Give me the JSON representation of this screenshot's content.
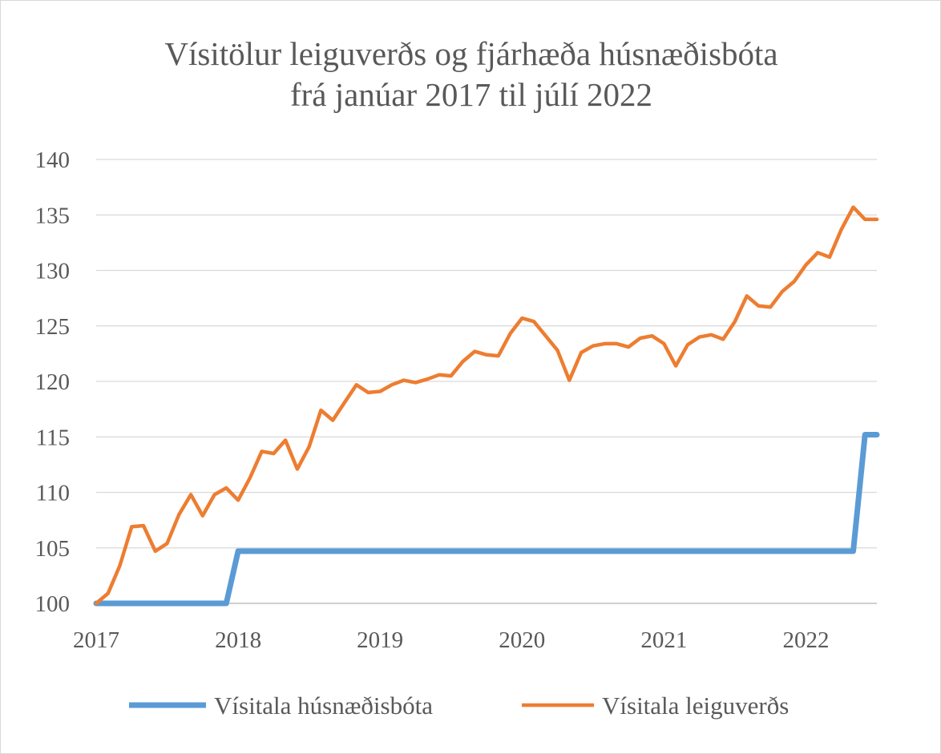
{
  "chart_data": {
    "type": "line",
    "title": [
      "Vísitölur leiguverðs og fjárhæða húsnæðisbóta",
      "frá janúar 2017 til júlí 2022"
    ],
    "xlabel": "",
    "ylabel": "",
    "ylim": [
      100,
      140
    ],
    "yticks": [
      100,
      105,
      110,
      115,
      120,
      125,
      130,
      135,
      140
    ],
    "xticks": [
      "2017",
      "2018",
      "2019",
      "2020",
      "2021",
      "2022"
    ],
    "x_start": "2017-01",
    "x_end": "2022-07",
    "grid": "horizontal",
    "legend_position": "bottom",
    "series": [
      {
        "name": "Vísitala húsnæðisbóta",
        "color": "#5B9BD5",
        "values": [
          100,
          100,
          100,
          100,
          100,
          100,
          100,
          100,
          100,
          100,
          100,
          100,
          104.7,
          104.7,
          104.7,
          104.7,
          104.7,
          104.7,
          104.7,
          104.7,
          104.7,
          104.7,
          104.7,
          104.7,
          104.7,
          104.7,
          104.7,
          104.7,
          104.7,
          104.7,
          104.7,
          104.7,
          104.7,
          104.7,
          104.7,
          104.7,
          104.7,
          104.7,
          104.7,
          104.7,
          104.7,
          104.7,
          104.7,
          104.7,
          104.7,
          104.7,
          104.7,
          104.7,
          104.7,
          104.7,
          104.7,
          104.7,
          104.7,
          104.7,
          104.7,
          104.7,
          104.7,
          104.7,
          104.7,
          104.7,
          104.7,
          104.7,
          104.7,
          104.7,
          104.7,
          115.2,
          115.2
        ]
      },
      {
        "name": "Vísitala leiguverðs",
        "color": "#ED7D31",
        "values": [
          100,
          100.9,
          103.4,
          106.9,
          107,
          104.7,
          105.4,
          108,
          109.8,
          107.9,
          109.8,
          110.4,
          109.3,
          111.3,
          113.7,
          113.5,
          114.7,
          112.1,
          114.1,
          117.4,
          116.5,
          118.1,
          119.7,
          119,
          119.1,
          119.7,
          120.1,
          119.9,
          120.2,
          120.6,
          120.5,
          121.8,
          122.7,
          122.4,
          122.3,
          124.3,
          125.7,
          125.4,
          124.1,
          122.8,
          120.1,
          122.6,
          123.2,
          123.4,
          123.4,
          123.1,
          123.9,
          124.1,
          123.4,
          121.4,
          123.3,
          124,
          124.2,
          123.8,
          125.4,
          127.7,
          126.8,
          126.7,
          128.1,
          129,
          130.5,
          131.6,
          131.2,
          133.7,
          135.7,
          134.6,
          134.6
        ]
      }
    ]
  }
}
